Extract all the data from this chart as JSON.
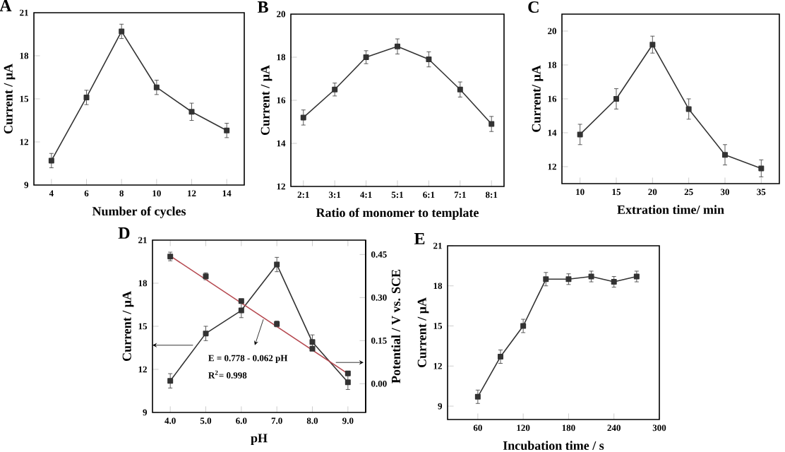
{
  "chart_data": [
    {
      "type": "line",
      "title": "A",
      "xlabel": "Number of cycles",
      "ylabel": "Current / μA",
      "marker": "square",
      "x": [
        4,
        6,
        8,
        10,
        12,
        14
      ],
      "xlim": [
        3,
        15
      ],
      "xticks": [
        4,
        6,
        8,
        10,
        12,
        14
      ],
      "ylim": [
        9,
        21
      ],
      "yticks": [
        9,
        12,
        15,
        18,
        21
      ],
      "series": [
        {
          "color": "#333333",
          "values": [
            10.7,
            15.1,
            19.7,
            15.8,
            14.1,
            12.8
          ],
          "errors": [
            0.5,
            0.5,
            0.5,
            0.5,
            0.6,
            0.5
          ]
        }
      ]
    },
    {
      "type": "line",
      "title": "B",
      "xlabel": "Ratio of monomer to template",
      "ylabel": "Current / μA",
      "marker": "square",
      "categories": [
        "2:1",
        "3:1",
        "4:1",
        "5:1",
        "6:1",
        "7:1",
        "8:1"
      ],
      "ylim": [
        12,
        20
      ],
      "yticks": [
        12,
        14,
        16,
        18,
        20
      ],
      "series": [
        {
          "color": "#333333",
          "values": [
            15.2,
            16.5,
            18.0,
            18.5,
            17.9,
            16.5,
            14.9
          ],
          "errors": [
            0.35,
            0.3,
            0.3,
            0.35,
            0.35,
            0.35,
            0.35
          ]
        }
      ]
    },
    {
      "type": "line",
      "title": "C",
      "xlabel": "Extration time/ min",
      "ylabel": "Current/ μA",
      "marker": "square",
      "x": [
        10,
        15,
        20,
        25,
        30,
        35
      ],
      "xlim": [
        7.5,
        37.5
      ],
      "xticks": [
        10,
        15,
        20,
        25,
        30,
        35
      ],
      "ylim": [
        11,
        21
      ],
      "yticks": [
        12,
        14,
        16,
        18,
        20
      ],
      "series": [
        {
          "color": "#333333",
          "values": [
            13.9,
            16.0,
            19.2,
            15.4,
            12.7,
            11.9
          ],
          "errors": [
            0.6,
            0.6,
            0.5,
            0.6,
            0.6,
            0.5
          ]
        }
      ]
    },
    {
      "type": "line",
      "title": "D",
      "xlabel": "pH",
      "ylabel": "Current / μA",
      "y2label": "Potential / V vs. SCE",
      "marker": "square",
      "x": [
        4,
        5,
        6,
        7,
        8,
        9
      ],
      "xlim": [
        3.5,
        9.5
      ],
      "xticks": [
        {
          "value": 4,
          "label": "4.0"
        },
        {
          "value": 5,
          "label": "5.0"
        },
        {
          "value": 6,
          "label": "6.0"
        },
        {
          "value": 7,
          "label": "7.0"
        },
        {
          "value": 8,
          "label": "8.0"
        },
        {
          "value": 9,
          "label": "9.0"
        }
      ],
      "ylim": [
        9,
        21
      ],
      "yticks": [
        9,
        12,
        15,
        18,
        21
      ],
      "y2lim": [
        -0.1,
        0.5
      ],
      "y2ticks": [
        {
          "value": 0,
          "label": "0.00"
        },
        {
          "value": 0.15,
          "label": "0.15"
        },
        {
          "value": 0.3,
          "label": "0.30"
        },
        {
          "value": 0.45,
          "label": "0.45"
        }
      ],
      "annotations": [
        "E = 0.778 - 0.062 pH",
        "R$^{2}$= 0.998"
      ],
      "series": [
        {
          "color": "#333333",
          "values": [
            11.2,
            14.5,
            16.1,
            19.3,
            13.9,
            11.1
          ],
          "errors": [
            0.5,
            0.5,
            0.5,
            0.5,
            0.5,
            0.5
          ]
        },
        {
          "type": "scatter",
          "axis": "y2",
          "color": "#333333",
          "values": [
            0.443,
            0.374,
            0.288,
            0.208,
            0.122,
            0.036
          ],
          "errors": [
            0.015,
            0.012,
            null,
            0.01,
            null,
            null
          ]
        },
        {
          "type": "line",
          "axis": "y2",
          "marker": "none",
          "color": "#b5484f",
          "x": [
            4,
            9
          ],
          "values": [
            0.445,
            0.035
          ]
        }
      ]
    },
    {
      "type": "line",
      "title": "E",
      "xlabel": "Incubation time / s",
      "ylabel": "Current / μA",
      "marker": "square",
      "x": [
        60,
        90,
        120,
        150,
        180,
        210,
        240,
        270
      ],
      "xlim": [
        20,
        300
      ],
      "xticks": [
        60,
        120,
        180,
        240,
        300
      ],
      "ylim": [
        8,
        21
      ],
      "yticks": [
        9,
        12,
        15,
        18,
        21
      ],
      "series": [
        {
          "color": "#333333",
          "values": [
            9.7,
            12.7,
            15.0,
            18.5,
            18.5,
            18.7,
            18.3,
            18.7
          ],
          "errors": [
            0.5,
            0.5,
            0.5,
            0.5,
            0.4,
            0.4,
            0.4,
            0.4
          ]
        }
      ]
    }
  ]
}
